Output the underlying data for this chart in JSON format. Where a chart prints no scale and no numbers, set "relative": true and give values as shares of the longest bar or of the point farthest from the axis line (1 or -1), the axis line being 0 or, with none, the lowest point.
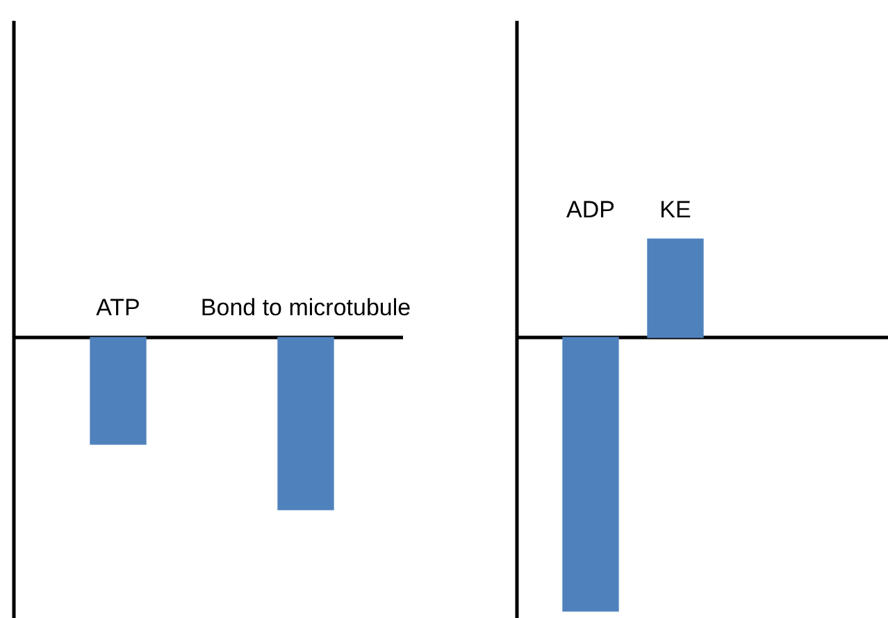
{
  "chart_data": [
    {
      "type": "bar",
      "relative": true,
      "categories": [
        "ATP",
        "Bond to microtubule"
      ],
      "color": "#4f81bd",
      "values": [
        -0.62,
        -1
      ]
    },
    {
      "type": "bar",
      "relative": true,
      "categories": [
        "ADP",
        "KE"
      ],
      "color": "#4f81bd",
      "values": [
        -1,
        0.36
      ]
    }
  ]
}
